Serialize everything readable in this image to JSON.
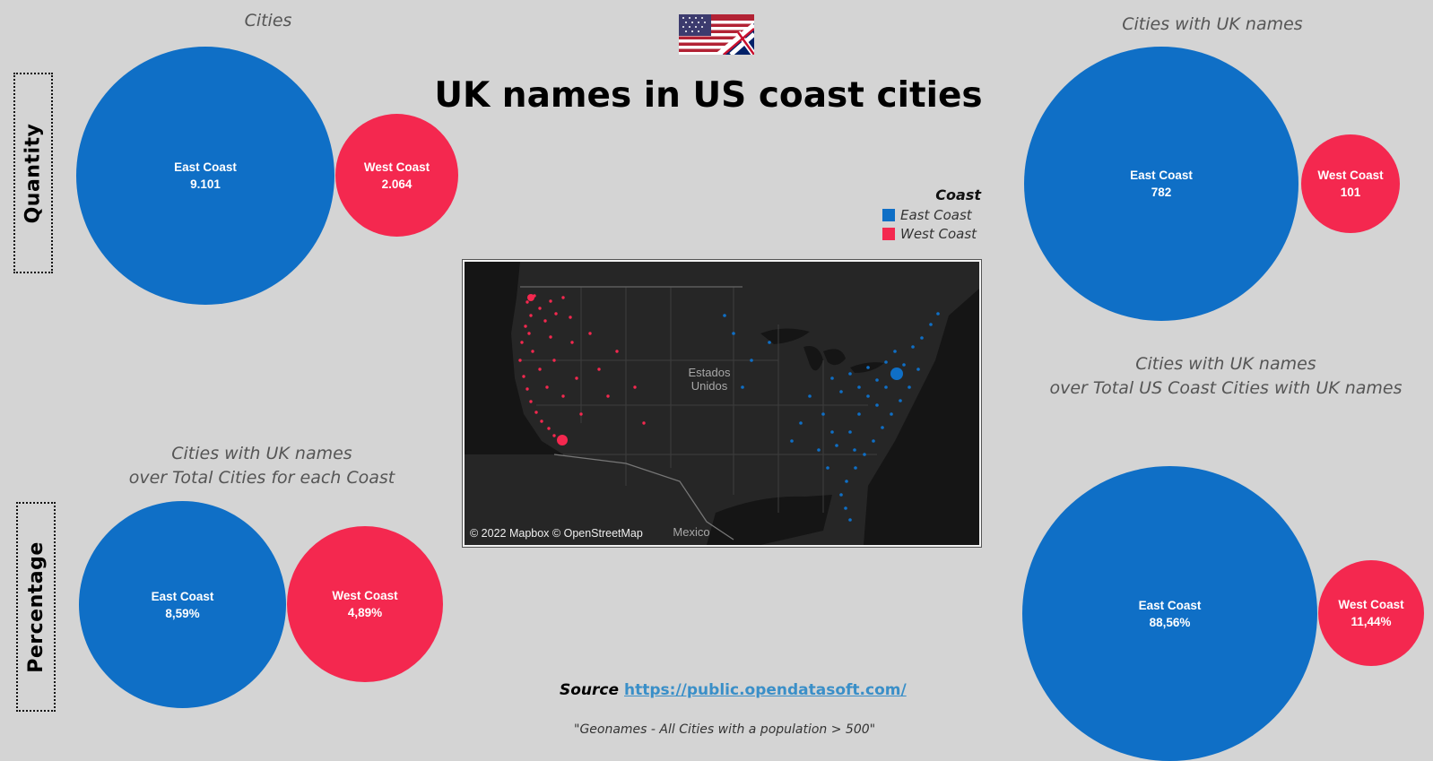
{
  "title": "UK names in US coast cities",
  "colors": {
    "east": "#0f6fc6",
    "west": "#f4284f",
    "background": "#d4d4d4"
  },
  "labels": {
    "quantity": "Quantity",
    "percentage": "Percentage"
  },
  "legend": {
    "title": "Coast",
    "items": [
      "East Coast",
      "West Coast"
    ]
  },
  "map": {
    "credit": "© 2022 Mapbox © OpenStreetMap",
    "country_label": "Estados Unidos",
    "mexico_label": "Mexico"
  },
  "source": {
    "label": "Source",
    "link": "https://public.opendatasoft.com/"
  },
  "note": "\"Geonames - All Cities with a population > 500\"",
  "chart_data": [
    {
      "type": "bubble",
      "title": "Cities",
      "categories": [
        "East Coast",
        "West Coast"
      ],
      "values": [
        9101,
        2064
      ],
      "value_labels": [
        "9.101",
        "2.064"
      ]
    },
    {
      "type": "bubble",
      "title": "Cities with UK names",
      "categories": [
        "East Coast",
        "West Coast"
      ],
      "values": [
        782,
        101
      ],
      "value_labels": [
        "782",
        "101"
      ]
    },
    {
      "type": "bubble",
      "title": "Cities with UK names",
      "subtitle": "over Total Cities for each Coast",
      "categories": [
        "East Coast",
        "West Coast"
      ],
      "values": [
        8.59,
        4.89
      ],
      "value_labels": [
        "8,59%",
        "4,89%"
      ]
    },
    {
      "type": "bubble",
      "title": "Cities with UK names",
      "subtitle": "over Total US Coast Cities with UK names",
      "categories": [
        "East Coast",
        "West Coast"
      ],
      "values": [
        88.56,
        11.44
      ],
      "value_labels": [
        "88,56%",
        "11,44%"
      ]
    }
  ]
}
